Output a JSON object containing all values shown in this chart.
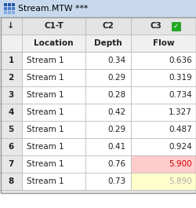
{
  "title": "Stream.MTW ***",
  "col_headers": [
    "",
    "C1-T",
    "C2",
    "C3"
  ],
  "col_subheaders": [
    "",
    "Location",
    "Depth",
    "Flow"
  ],
  "rows": [
    [
      "1",
      "Stream 1",
      "0.34",
      "0.636"
    ],
    [
      "2",
      "Stream 1",
      "0.29",
      "0.319"
    ],
    [
      "3",
      "Stream 1",
      "0.28",
      "0.734"
    ],
    [
      "4",
      "Stream 1",
      "0.42",
      "1.327"
    ],
    [
      "5",
      "Stream 1",
      "0.29",
      "0.487"
    ],
    [
      "6",
      "Stream 1",
      "0.41",
      "0.924"
    ],
    [
      "7",
      "Stream 1",
      "0.76",
      "5.900"
    ],
    [
      "8",
      "Stream 1",
      "0.73",
      "5.890"
    ]
  ],
  "special_cells": {
    "row7_c3_bg": "#FFCCCC",
    "row7_c3_fg": "#CC0000",
    "row8_c3_bg": "#FFFFCC",
    "row8_c3_fg": "#AAAAAA"
  },
  "title_bg": "#C8D9EE",
  "header_bg": "#E4E4E4",
  "subheader_bg": "#F0F0F0",
  "row_bg_normal": "#FFFFFF",
  "row_num_bg": "#E8E8E8",
  "grid_color": "#BBBBBB",
  "border_color": "#999999",
  "icon_color_dark": "#2255AA",
  "icon_color_mid": "#4477CC",
  "icon_color_light": "#88AADD",
  "check_bg": "#22AA22"
}
